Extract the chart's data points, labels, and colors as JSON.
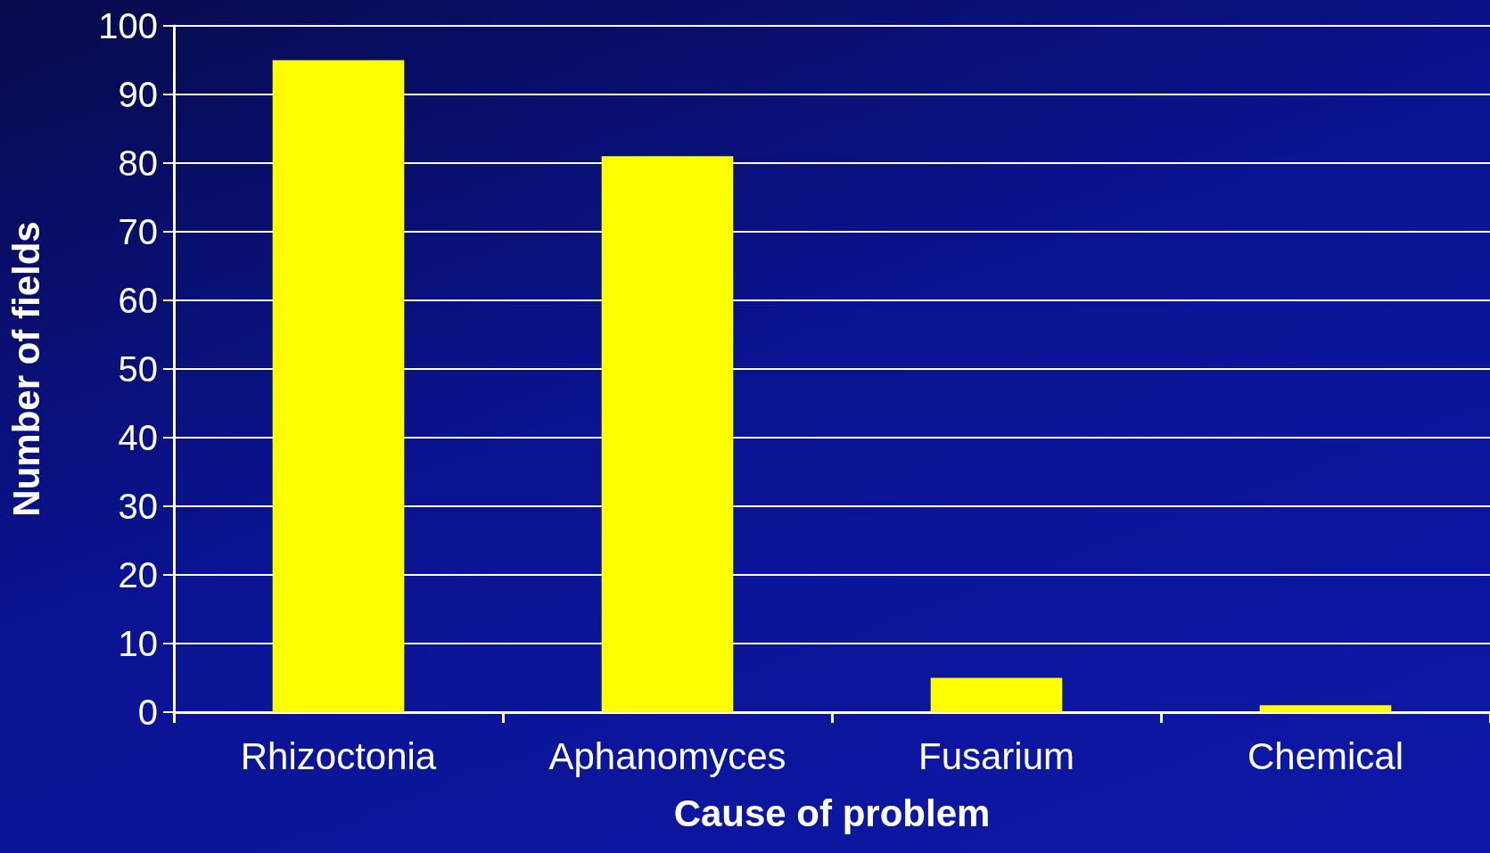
{
  "chart_data": {
    "type": "bar",
    "xlabel": "Cause of problem",
    "ylabel": "Number of fields",
    "categories": [
      "Rhizoctonia",
      "Aphanomyces",
      "Fusarium",
      "Chemical"
    ],
    "values": [
      95,
      81,
      5,
      1
    ],
    "color": "#ffff00",
    "ylim": [
      0,
      100
    ],
    "yticks": [
      0,
      10,
      20,
      30,
      40,
      50,
      60,
      70,
      80,
      90,
      100
    ],
    "grid": "y"
  }
}
